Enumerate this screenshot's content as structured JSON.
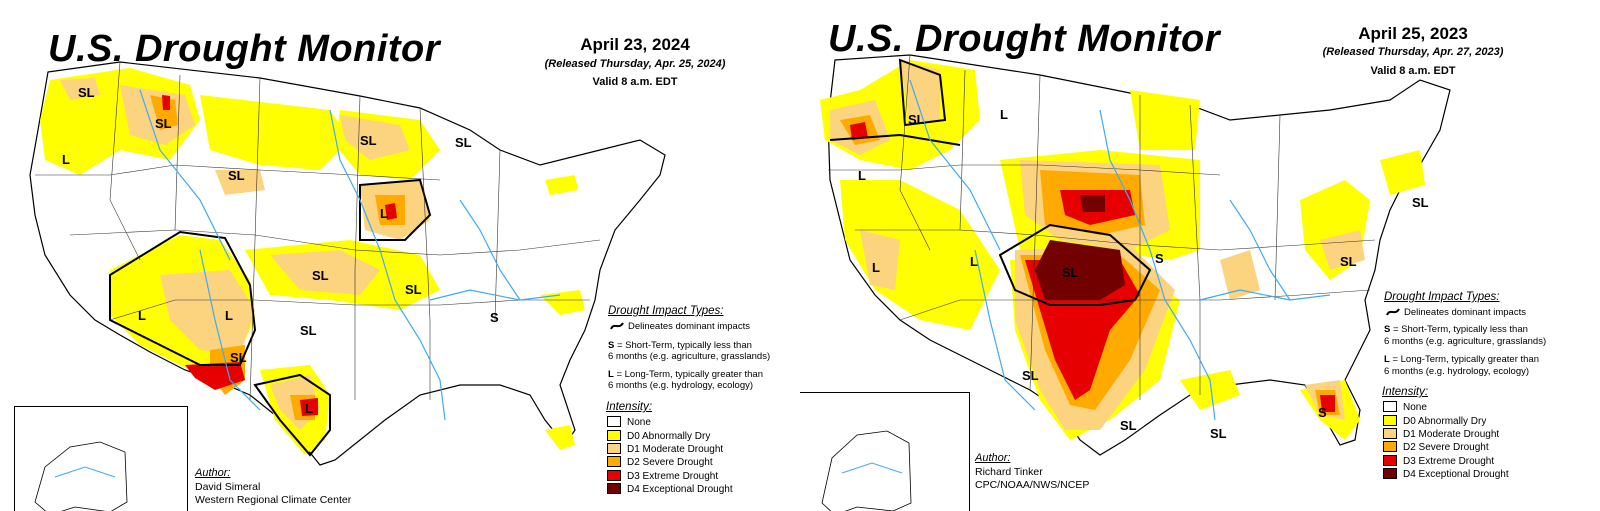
{
  "panels": [
    {
      "title": "U.S. Drought Monitor",
      "date": "April 23, 2024",
      "released": "(Released Thursday, Apr. 25, 2024)",
      "valid": "Valid 8 a.m. EDT",
      "impact_title": "Drought Impact Types:",
      "impact_lines": [
        "Delineates dominant impacts",
        "= Short-Term, typically less than",
        "6 months (e.g. agriculture, grasslands)",
        "= Long-Term, typically greater than",
        "6 months (e.g. hydrology, ecology)"
      ],
      "impact_letters": [
        "S",
        "L"
      ],
      "intensity_title": "Intensity:",
      "legend": [
        "None",
        "D0 Abnormally Dry",
        "D1 Moderate Drought",
        "D2 Severe Drought",
        "D3 Extreme Drought",
        "D4 Exceptional Drought"
      ],
      "author_label": "Author:",
      "author_lines": [
        "David Simeral",
        "Western Regional Climate Center"
      ],
      "map_labels": [
        "SL",
        "SL",
        "L",
        "SL",
        "SL",
        "SL",
        "L",
        "SL",
        "SL",
        "L",
        "L",
        "SL",
        "SL",
        "L",
        "S"
      ]
    },
    {
      "title": "U.S. Drought Monitor",
      "date": "April 25, 2023",
      "released": "(Released Thursday, Apr. 27, 2023)",
      "valid": "Valid 8 a.m. EDT",
      "impact_title": "Drought Impact Types:",
      "impact_lines": [
        "Delineates dominant impacts",
        "= Short-Term, typically less than",
        "6 months (e.g. agriculture, grasslands)",
        "= Long-Term, typically greater than",
        "6 months (e.g. hydrology, ecology)"
      ],
      "impact_letters": [
        "S",
        "L"
      ],
      "intensity_title": "Intensity:",
      "legend": [
        "None",
        "D0 Abnormally Dry",
        "D1 Moderate Drought",
        "D2 Severe Drought",
        "D3 Extreme Drought",
        "D4 Exceptional Drought"
      ],
      "author_label": "Author:",
      "author_lines": [
        "Richard Tinker",
        "CPC/NOAA/NWS/NCEP"
      ],
      "map_labels": [
        "SL",
        "L",
        "L",
        "L",
        "L",
        "SL",
        "S",
        "SL",
        "SL",
        "SL",
        "SL",
        "SL",
        "S"
      ]
    }
  ],
  "colors": {
    "none": "#ffffff",
    "d0": "#ffff00",
    "d1": "#fcd37f",
    "d2": "#ffaa00",
    "d3": "#e60000",
    "d4": "#730000",
    "rivers": "#3fa9f5",
    "borders": "#000000"
  }
}
